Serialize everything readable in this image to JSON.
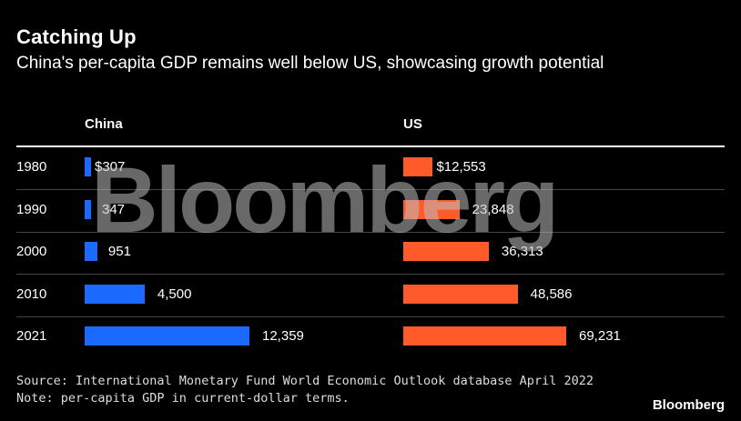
{
  "title": "Catching Up",
  "subtitle": "China's per-capita GDP remains well below US, showcasing growth potential",
  "source": "Source: International Monetary Fund World Economic Outlook database April 2022",
  "note": "Note: per-capita GDP in current-dollar terms.",
  "brand": "Bloomberg",
  "watermark": "Bloomberg",
  "colors": {
    "china": "#1A6AFF",
    "us": "#FF5A2A",
    "background": "#000000"
  },
  "chart_data": {
    "type": "bar",
    "orientation": "horizontal",
    "categories": [
      "1980",
      "1990",
      "2000",
      "2010",
      "2021"
    ],
    "series": [
      {
        "name": "China",
        "values": [
          307,
          347,
          951,
          4500,
          12359
        ],
        "labels": [
          "$307",
          "347",
          "951",
          "4,500",
          "12,359"
        ]
      },
      {
        "name": "US",
        "values": [
          12553,
          23848,
          36313,
          48586,
          69231
        ],
        "labels": [
          "$12,553",
          "23,848",
          "36,313",
          "48,586",
          "69,231"
        ]
      }
    ]
  }
}
